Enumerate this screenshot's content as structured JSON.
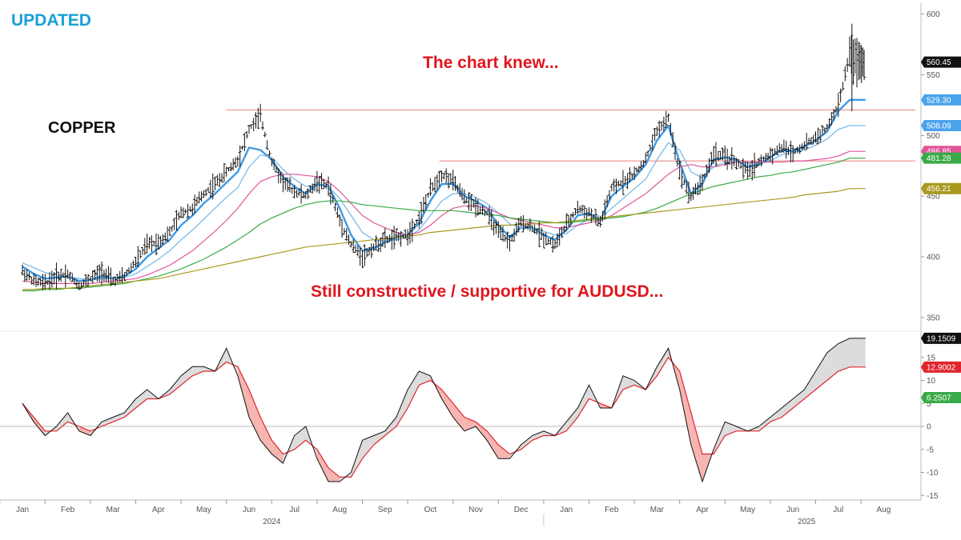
{
  "annotations": {
    "updated": "UPDATED",
    "commodity": "COPPER",
    "headline": "The chart knew...",
    "subline": "Still constructive / supportive for AUDUSD..."
  },
  "colors": {
    "price_bars": "#111111",
    "ema_fast": "#3c9be8",
    "ema_slow": "#7bbbe8",
    "ma_mid": "#e0559a",
    "ma_long": "#3aaa48",
    "ma_very_long": "#a89a1e",
    "resistance": "#f0a0a0",
    "osc_line": "#111111",
    "osc_signal": "#e0262d",
    "osc_fill_up": "#dcdcdc",
    "osc_fill_down": "#f6b5b0",
    "annotation_red": "#e0161d",
    "annotation_blue": "#1a9fd8"
  },
  "chart_data": [
    {
      "type": "bar",
      "subtype": "ohlc",
      "yaxis_ticks": [
        350,
        400,
        450,
        500,
        550,
        600
      ],
      "ylim": [
        340,
        605
      ],
      "xaxis_months": [
        "Jan",
        "Feb",
        "Mar",
        "Apr",
        "May",
        "Jun",
        "Jul",
        "Aug",
        "Sep",
        "Oct",
        "Nov",
        "Dec",
        "Jan",
        "Feb",
        "Mar",
        "Apr",
        "May",
        "Jun",
        "Jul",
        "Aug"
      ],
      "xaxis_years": [
        {
          "label": "2024",
          "month_index": 5.5
        },
        {
          "label": "2025",
          "month_index": 17.3
        }
      ],
      "x": [
        0,
        0.25,
        0.5,
        0.75,
        1.0,
        1.25,
        1.5,
        1.75,
        2.0,
        2.25,
        2.5,
        2.75,
        3.0,
        3.25,
        3.5,
        3.75,
        4.0,
        4.25,
        4.5,
        4.75,
        5.0,
        5.25,
        5.5,
        5.75,
        6.0,
        6.25,
        6.5,
        6.75,
        7.0,
        7.25,
        7.5,
        7.75,
        8.0,
        8.25,
        8.5,
        8.75,
        9.0,
        9.25,
        9.5,
        9.75,
        10.0,
        10.25,
        10.5,
        10.75,
        11.0,
        11.25,
        11.5,
        11.75,
        12.0,
        12.25,
        12.5,
        12.75,
        13.0,
        13.25,
        13.5,
        13.75,
        14.0,
        14.25,
        14.5,
        14.75,
        15.0,
        15.25,
        15.5,
        15.75,
        16.0,
        16.25,
        16.5,
        16.75,
        17.0,
        17.25,
        17.5,
        17.75,
        18.0,
        18.25,
        18.45,
        18.6
      ],
      "series": [
        {
          "name": "",
          "role": "price",
          "values": [
            388,
            380,
            378,
            384,
            386,
            376,
            382,
            388,
            380,
            384,
            396,
            410,
            412,
            420,
            436,
            440,
            452,
            460,
            470,
            480,
            505,
            516,
            478,
            462,
            454,
            450,
            462,
            458,
            430,
            410,
            400,
            408,
            414,
            416,
            418,
            432,
            455,
            468,
            462,
            448,
            442,
            436,
            420,
            412,
            428,
            424,
            416,
            410,
            426,
            440,
            436,
            428,
            456,
            462,
            468,
            480,
            504,
            514,
            470,
            450,
            462,
            485,
            482,
            478,
            470,
            478,
            484,
            490,
            486,
            492,
            498,
            506,
            525,
            566,
            560,
            560.45
          ]
        },
        {
          "name": "",
          "role": "ema_fast",
          "values": [
            392,
            386,
            382,
            383,
            384,
            380,
            381,
            384,
            382,
            384,
            390,
            400,
            407,
            414,
            426,
            434,
            444,
            452,
            461,
            470,
            490,
            488,
            480,
            466,
            458,
            452,
            460,
            458,
            440,
            418,
            405,
            407,
            412,
            416,
            418,
            428,
            446,
            460,
            460,
            450,
            446,
            440,
            426,
            416,
            424,
            424,
            418,
            414,
            422,
            434,
            436,
            430,
            450,
            458,
            465,
            476,
            496,
            508,
            478,
            452,
            460,
            480,
            482,
            480,
            474,
            476,
            482,
            488,
            487,
            491,
            496,
            503,
            520,
            529.3,
            529.3,
            529.3
          ]
        },
        {
          "name": "",
          "role": "ema_slow",
          "values": [
            395,
            391,
            387,
            385,
            384,
            382,
            381,
            382,
            382,
            383,
            386,
            392,
            398,
            405,
            414,
            422,
            431,
            440,
            449,
            457,
            474,
            484,
            482,
            472,
            464,
            458,
            459,
            458,
            448,
            434,
            420,
            414,
            413,
            414,
            416,
            422,
            434,
            446,
            452,
            452,
            449,
            444,
            436,
            427,
            424,
            424,
            421,
            418,
            419,
            426,
            431,
            432,
            440,
            448,
            456,
            464,
            480,
            494,
            488,
            470,
            465,
            474,
            478,
            479,
            477,
            477,
            479,
            484,
            486,
            488,
            492,
            497,
            505,
            508.09,
            508.09,
            508.09
          ]
        },
        {
          "name": "",
          "role": "ma_mid",
          "values": [
            380,
            379,
            378,
            378,
            378,
            378,
            378,
            379,
            380,
            381,
            382,
            385,
            389,
            393,
            399,
            405,
            413,
            421,
            430,
            440,
            452,
            462,
            466,
            468,
            468,
            467,
            466,
            462,
            454,
            444,
            434,
            428,
            424,
            420,
            418,
            420,
            426,
            434,
            440,
            442,
            442,
            440,
            436,
            432,
            430,
            428,
            426,
            424,
            424,
            426,
            428,
            430,
            434,
            440,
            446,
            452,
            460,
            468,
            474,
            476,
            474,
            474,
            476,
            478,
            478,
            478,
            478,
            478,
            479,
            479,
            480,
            481,
            483,
            486.85,
            486.85,
            486.85
          ]
        },
        {
          "name": "",
          "role": "ma_long",
          "values": [
            372,
            372,
            373,
            373,
            374,
            374,
            375,
            376,
            377,
            378,
            380,
            382,
            384,
            387,
            390,
            394,
            398,
            403,
            408,
            414,
            420,
            427,
            432,
            436,
            440,
            443,
            445,
            446,
            446,
            445,
            443,
            442,
            441,
            440,
            439,
            438,
            438,
            438,
            438,
            437,
            436,
            435,
            434,
            432,
            431,
            430,
            429,
            428,
            428,
            429,
            430,
            431,
            432,
            433,
            435,
            437,
            440,
            444,
            448,
            452,
            455,
            458,
            460,
            462,
            464,
            466,
            467,
            469,
            470,
            472,
            474,
            476,
            478,
            481.28,
            481.28,
            481.28
          ]
        },
        {
          "name": "",
          "role": "ma_very_long",
          "values": [
            373,
            373,
            374,
            374,
            374,
            375,
            376,
            377,
            378,
            379,
            380,
            381,
            382,
            384,
            386,
            388,
            390,
            392,
            394,
            396,
            398,
            400,
            402,
            404,
            406,
            408,
            409,
            410,
            411,
            412,
            413,
            414,
            415,
            416,
            417,
            418,
            420,
            421,
            422,
            423,
            424,
            425,
            426,
            426,
            427,
            427,
            428,
            428,
            429,
            430,
            431,
            432,
            433,
            434,
            435,
            436,
            437,
            438,
            439,
            440,
            441,
            442,
            443,
            444,
            445,
            446,
            447,
            448,
            449,
            451,
            452,
            453,
            454,
            456.21,
            456.21,
            456.21
          ]
        }
      ],
      "resistance_levels": [
        {
          "value": 521,
          "x_start": 4.5,
          "x_end": 19.7
        },
        {
          "value": 479,
          "x_start": 9.2,
          "x_end": 19.7
        }
      ],
      "last_value_labels": [
        {
          "text": "560.45",
          "value": 560.45,
          "style": "dark"
        },
        {
          "text": "529.30",
          "value": 529.3,
          "style": "blue"
        },
        {
          "text": "508.09",
          "value": 508.09,
          "style": "blue"
        },
        {
          "text": "486.85",
          "value": 486.85,
          "style": "pink"
        },
        {
          "text": "481.28",
          "value": 481.28,
          "style": "green"
        },
        {
          "text": "456.21",
          "value": 456.21,
          "style": "olive"
        }
      ]
    },
    {
      "type": "area",
      "subtype": "oscillator",
      "yaxis_ticks": [
        -15,
        -10,
        -5,
        0,
        5,
        10,
        15
      ],
      "ylim": [
        -16,
        20
      ],
      "x": [
        0,
        0.25,
        0.5,
        0.75,
        1.0,
        1.25,
        1.5,
        1.75,
        2.0,
        2.25,
        2.5,
        2.75,
        3.0,
        3.25,
        3.5,
        3.75,
        4.0,
        4.25,
        4.5,
        4.75,
        5.0,
        5.25,
        5.5,
        5.75,
        6.0,
        6.25,
        6.5,
        6.75,
        7.0,
        7.25,
        7.5,
        7.75,
        8.0,
        8.25,
        8.5,
        8.75,
        9.0,
        9.25,
        9.5,
        9.75,
        10.0,
        10.25,
        10.5,
        10.75,
        11.0,
        11.25,
        11.5,
        11.75,
        12.0,
        12.25,
        12.5,
        12.75,
        13.0,
        13.25,
        13.5,
        13.75,
        14.0,
        14.25,
        14.5,
        14.75,
        15.0,
        15.25,
        15.5,
        15.75,
        16.0,
        16.25,
        16.5,
        16.75,
        17.0,
        17.25,
        17.5,
        17.75,
        18.0,
        18.25,
        18.45,
        18.6
      ],
      "series": [
        {
          "name": "",
          "role": "oscillator",
          "values": [
            5,
            1,
            -2,
            0,
            3,
            -1,
            -2,
            1,
            2,
            3,
            6,
            8,
            6,
            8,
            11,
            13,
            13,
            12,
            17,
            11,
            2,
            -3,
            -6,
            -8,
            -2,
            0,
            -7,
            -12,
            -12,
            -10,
            -3,
            -2,
            -1,
            2,
            8,
            12,
            11,
            6,
            2,
            -1,
            0,
            -3,
            -7,
            -7,
            -4,
            -2,
            -1,
            -2,
            1,
            4,
            9,
            4,
            4,
            11,
            10,
            8,
            13,
            17,
            8,
            -4,
            -12,
            -5,
            1,
            0,
            -1,
            0,
            2,
            4,
            6,
            8,
            12,
            16,
            18,
            19.1509,
            19.1509,
            19.1509
          ]
        },
        {
          "name": "",
          "role": "signal",
          "values": [
            5,
            2,
            -1,
            -1,
            1,
            0,
            -1,
            0,
            1,
            2,
            4,
            6,
            6,
            7,
            9,
            11,
            12,
            12,
            14,
            13,
            8,
            2,
            -3,
            -6,
            -5,
            -3,
            -5,
            -9,
            -11,
            -11,
            -7,
            -4,
            -2,
            0,
            4,
            9,
            10,
            8,
            5,
            2,
            1,
            -1,
            -4,
            -6,
            -5,
            -3,
            -2,
            -2,
            -1,
            2,
            6,
            5,
            4,
            8,
            9,
            8,
            11,
            15,
            12,
            3,
            -6,
            -6,
            -2,
            -1,
            -1,
            -1,
            1,
            2,
            4,
            6,
            8,
            10,
            12,
            12.9002,
            12.9002,
            12.9002
          ]
        }
      ],
      "last_value_labels": [
        {
          "text": "19.1509",
          "value": 19.1509,
          "style": "dark"
        },
        {
          "text": "12.9002",
          "value": 12.9002,
          "style": "red"
        },
        {
          "text": "6.2507",
          "value": 6.2507,
          "style": "green"
        }
      ]
    }
  ]
}
